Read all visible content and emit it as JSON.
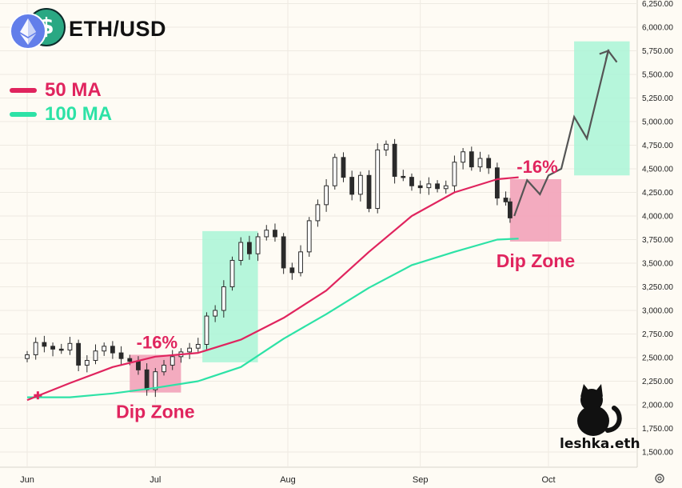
{
  "header": {
    "pair": "ETH/USD"
  },
  "legend": [
    {
      "label": "50 MA",
      "color": "#e0245e"
    },
    {
      "label": "100 MA",
      "color": "#2de2a6"
    }
  ],
  "brand": {
    "watermark": "leshka.eth"
  },
  "colors": {
    "background": "#fefbf4",
    "candle": "#2a2a2a",
    "ma50": "#e0245e",
    "ma100": "#2de2a6",
    "dip_zone": "#f2a7bc",
    "pump_zone": "#a9f5d6",
    "projection": "#555555"
  },
  "icons": [
    "eth-logo-icon",
    "usd-coin-icon",
    "cat-silhouette-icon",
    "settings-icon"
  ],
  "chart_data": {
    "type": "candlestick",
    "title": "ETH/USD",
    "x_ticks": [
      "Jun",
      "Jul",
      "Aug",
      "Sep",
      "Oct"
    ],
    "y_ticks": [
      "6,250.00",
      "6,000.00",
      "5,750.00",
      "5,500.00",
      "5,250.00",
      "5,000.00",
      "4,750.00",
      "4,500.00",
      "4,250.00",
      "4,000.00",
      "3,750.00",
      "3,500.00",
      "3,250.00",
      "3,000.00",
      "2,750.00",
      "2,500.00",
      "2,250.00",
      "2,000.00",
      "1,750.00",
      "1,500.00"
    ],
    "ylim": [
      1430,
      6280
    ],
    "day_range": [
      0,
      130
    ],
    "tick_days": [
      0,
      30,
      61,
      92,
      122
    ],
    "price_close_approx": [
      [
        0,
        2530
      ],
      [
        2,
        2660
      ],
      [
        4,
        2620
      ],
      [
        6,
        2590
      ],
      [
        8,
        2580
      ],
      [
        10,
        2650
      ],
      [
        12,
        2420
      ],
      [
        14,
        2470
      ],
      [
        16,
        2570
      ],
      [
        18,
        2620
      ],
      [
        20,
        2550
      ],
      [
        22,
        2490
      ],
      [
        24,
        2460
      ],
      [
        26,
        2370
      ],
      [
        28,
        2160
      ],
      [
        30,
        2350
      ],
      [
        32,
        2420
      ],
      [
        34,
        2510
      ],
      [
        36,
        2560
      ],
      [
        38,
        2600
      ],
      [
        40,
        2640
      ],
      [
        42,
        2940
      ],
      [
        44,
        3000
      ],
      [
        46,
        3250
      ],
      [
        48,
        3530
      ],
      [
        50,
        3720
      ],
      [
        52,
        3600
      ],
      [
        54,
        3780
      ],
      [
        56,
        3850
      ],
      [
        58,
        3780
      ],
      [
        60,
        3450
      ],
      [
        62,
        3400
      ],
      [
        64,
        3620
      ],
      [
        66,
        3950
      ],
      [
        68,
        4120
      ],
      [
        70,
        4320
      ],
      [
        72,
        4620
      ],
      [
        74,
        4410
      ],
      [
        76,
        4230
      ],
      [
        78,
        4430
      ],
      [
        80,
        4080
      ],
      [
        82,
        4700
      ],
      [
        84,
        4760
      ],
      [
        86,
        4420
      ],
      [
        88,
        4410
      ],
      [
        90,
        4320
      ],
      [
        92,
        4300
      ],
      [
        94,
        4340
      ],
      [
        96,
        4290
      ],
      [
        98,
        4320
      ],
      [
        100,
        4570
      ],
      [
        102,
        4680
      ],
      [
        104,
        4520
      ],
      [
        106,
        4610
      ],
      [
        108,
        4510
      ],
      [
        110,
        4190
      ],
      [
        112,
        4150
      ],
      [
        113,
        3980
      ]
    ],
    "series": [
      {
        "name": "50 MA",
        "values": [
          [
            0,
            2050
          ],
          [
            10,
            2230
          ],
          [
            20,
            2400
          ],
          [
            30,
            2510
          ],
          [
            40,
            2550
          ],
          [
            50,
            2690
          ],
          [
            60,
            2920
          ],
          [
            70,
            3210
          ],
          [
            80,
            3620
          ],
          [
            90,
            4000
          ],
          [
            100,
            4250
          ],
          [
            110,
            4390
          ],
          [
            115,
            4410
          ]
        ]
      },
      {
        "name": "100 MA",
        "values": [
          [
            0,
            2080
          ],
          [
            10,
            2080
          ],
          [
            20,
            2120
          ],
          [
            30,
            2180
          ],
          [
            40,
            2250
          ],
          [
            50,
            2400
          ],
          [
            60,
            2700
          ],
          [
            70,
            2960
          ],
          [
            80,
            3240
          ],
          [
            90,
            3480
          ],
          [
            100,
            3620
          ],
          [
            110,
            3750
          ],
          [
            115,
            3760
          ]
        ]
      }
    ],
    "projection": {
      "values": [
        [
          114,
          4000
        ],
        [
          117,
          4380
        ],
        [
          120,
          4230
        ],
        [
          122,
          4430
        ],
        [
          125,
          4500
        ],
        [
          128,
          5050
        ],
        [
          131,
          4820
        ],
        [
          136,
          5750
        ],
        [
          138,
          5630
        ]
      ]
    },
    "zones": [
      {
        "type": "dip",
        "label": "Dip Zone",
        "pct_label": "-16%",
        "day_range": [
          24,
          36
        ],
        "price_range": [
          2130,
          2530
        ]
      },
      {
        "type": "pump",
        "day_range": [
          41,
          54
        ],
        "price_range": [
          2450,
          3840
        ]
      },
      {
        "type": "dip",
        "label": "Dip Zone",
        "pct_label": "-16%",
        "day_range": [
          113,
          125
        ],
        "price_range": [
          3730,
          4390
        ]
      },
      {
        "type": "pump",
        "day_range": [
          128,
          141
        ],
        "price_range": [
          4430,
          5850
        ]
      }
    ]
  }
}
